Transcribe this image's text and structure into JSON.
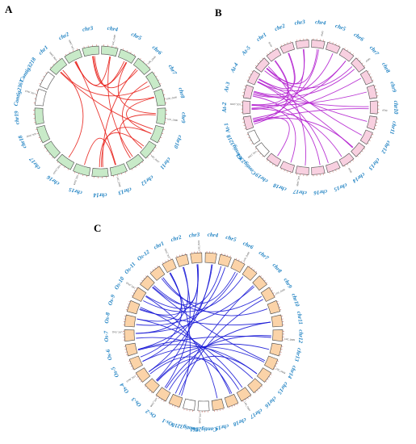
{
  "colors": {
    "label": "#1a7fc1"
  },
  "panels": [
    {
      "id": "A",
      "letter": "A",
      "block_fill": "#c8eac8",
      "block_stroke": "#4a4a4a",
      "link_color": "#e8211b",
      "chromosomes": [
        "chr1",
        "chr2",
        "chr3",
        "chr4",
        "chr5",
        "chr6",
        "chr7",
        "chr8",
        "chr9",
        "chr10",
        "chr11",
        "chr12",
        "chr13",
        "chr14",
        "chr15",
        "chr16",
        "chr17",
        "chr18",
        "chr19",
        "Contig2361",
        "Contig3218"
      ],
      "gene_labels": [
        "LOC_Os01",
        "LOC_Os02",
        "LOC_Os03",
        "LOC_Os04",
        "LOC_Os05",
        "LOC_Os06",
        "LOC_Os07",
        "LOC_Os08",
        "LOC_Os09",
        "LOC_Os10",
        "LOC_Os11",
        "LOC_Os12"
      ],
      "links": [
        [
          0,
          9
        ],
        [
          0,
          6
        ],
        [
          1,
          4
        ],
        [
          1,
          3
        ],
        [
          1,
          12
        ],
        [
          2,
          4
        ],
        [
          2,
          5
        ],
        [
          3,
          11
        ],
        [
          4,
          8
        ],
        [
          5,
          13
        ],
        [
          6,
          10
        ],
        [
          7,
          9
        ],
        [
          8,
          11
        ],
        [
          10,
          13
        ],
        [
          0,
          15
        ],
        [
          12,
          14
        ],
        [
          9,
          13
        ],
        [
          2,
          7
        ]
      ]
    },
    {
      "id": "B",
      "letter": "B",
      "block_fill": "#f8d0e0",
      "block_stroke": "#4a4a4a",
      "link_color": "#b21fcf",
      "chromosomes": [
        "chr1",
        "chr2",
        "chr3",
        "chr4",
        "chr5",
        "chr6",
        "chr7",
        "chr8",
        "chr9",
        "chr10",
        "chr11",
        "chr12",
        "chr13",
        "chr14",
        "chr15",
        "chr16",
        "chr17",
        "chr18",
        "chr19",
        "Contig2361",
        "Contig3218",
        "At-1",
        "At-2",
        "At-3",
        "At-4",
        "At-5"
      ],
      "gene_labels": [
        "AT1G",
        "AT2G",
        "AT3G",
        "AT4G",
        "AT5G",
        "LOC_Os01",
        "LOC_Os02",
        "LOC_Os03"
      ],
      "links": [
        [
          0,
          21
        ],
        [
          0,
          22
        ],
        [
          1,
          23
        ],
        [
          1,
          24
        ],
        [
          2,
          25
        ],
        [
          2,
          21
        ],
        [
          3,
          22
        ],
        [
          4,
          23
        ],
        [
          5,
          24
        ],
        [
          6,
          25
        ],
        [
          7,
          21
        ],
        [
          8,
          22
        ],
        [
          9,
          23
        ],
        [
          10,
          24
        ],
        [
          11,
          25
        ],
        [
          12,
          21
        ],
        [
          13,
          22
        ],
        [
          14,
          24
        ],
        [
          15,
          23
        ],
        [
          16,
          25
        ],
        [
          17,
          22
        ],
        [
          18,
          21
        ],
        [
          3,
          25
        ],
        [
          6,
          23
        ],
        [
          9,
          21
        ],
        [
          12,
          24
        ],
        [
          5,
          22
        ]
      ]
    },
    {
      "id": "C",
      "letter": "C",
      "block_fill": "#fbd3a8",
      "block_stroke": "#4a4a4a",
      "link_color": "#1a1ad6",
      "chromosomes": [
        "chr1",
        "chr2",
        "chr3",
        "chr4",
        "chr5",
        "chr6",
        "chr7",
        "chr8",
        "chr9",
        "chr10",
        "chr11",
        "chr12",
        "chr13",
        "chr14",
        "chr15",
        "chr16",
        "chr17",
        "chr18",
        "chr19",
        "Contig2361",
        "Contig3218",
        "Os-1",
        "Os-2",
        "Os-3",
        "Os-4",
        "Os-5",
        "Os-6",
        "Os-7",
        "Os-8",
        "Os-9",
        "Os-10",
        "Os-11",
        "Os-12"
      ],
      "gene_labels": [
        "LOC_Os01",
        "LOC_Os02",
        "LOC_Os03",
        "LOC_Os04",
        "LOC_Os05",
        "LOC_Os06",
        "LOC_Os07",
        "LOC_Os08",
        "LOC_Os09",
        "LOC_Os10",
        "LOC_Os11",
        "LOC_Os12"
      ],
      "links": [
        [
          0,
          21
        ],
        [
          0,
          25
        ],
        [
          1,
          22
        ],
        [
          1,
          27
        ],
        [
          2,
          23
        ],
        [
          2,
          29
        ],
        [
          3,
          24
        ],
        [
          4,
          26
        ],
        [
          5,
          28
        ],
        [
          6,
          30
        ],
        [
          7,
          21
        ],
        [
          8,
          31
        ],
        [
          9,
          32
        ],
        [
          10,
          22
        ],
        [
          11,
          23
        ],
        [
          12,
          24
        ],
        [
          13,
          25
        ],
        [
          14,
          26
        ],
        [
          15,
          27
        ],
        [
          16,
          28
        ],
        [
          17,
          29
        ],
        [
          18,
          30
        ],
        [
          2,
          31
        ],
        [
          5,
          32
        ],
        [
          8,
          21
        ],
        [
          11,
          26
        ],
        [
          14,
          22
        ],
        [
          17,
          24
        ],
        [
          0,
          28
        ],
        [
          4,
          30
        ],
        [
          7,
          27
        ],
        [
          10,
          29
        ],
        [
          13,
          31
        ],
        [
          16,
          23
        ],
        [
          3,
          25
        ]
      ]
    }
  ]
}
